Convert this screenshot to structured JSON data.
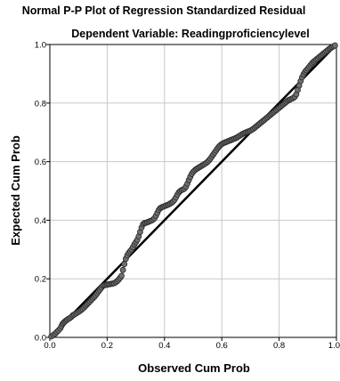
{
  "chart_data": {
    "type": "scatter",
    "title": "Normal P-P Plot of Regression Standardized Residual",
    "subtitle": "Dependent Variable: Readingproficiencylevel",
    "xlabel": "Observed Cum Prob",
    "ylabel": "Expected Cum Prob",
    "xlim": [
      0,
      1
    ],
    "ylim": [
      0,
      1
    ],
    "x_ticks": [
      0.0,
      0.2,
      0.4,
      0.6,
      0.8,
      1.0
    ],
    "y_ticks": [
      0.0,
      0.2,
      0.4,
      0.6,
      0.8,
      1.0
    ],
    "x_tick_labels": [
      "0.0",
      "0.2",
      "0.4",
      "0.6",
      "0.8",
      "1.0"
    ],
    "y_tick_labels": [
      "0.0",
      "0.2",
      "0.4",
      "0.6",
      "0.8",
      "1.0"
    ],
    "grid": true,
    "reference_line": {
      "from": [
        0,
        0
      ],
      "to": [
        1,
        1
      ]
    },
    "point_color": "#707070",
    "points": [
      [
        0.005,
        0.003
      ],
      [
        0.012,
        0.008
      ],
      [
        0.018,
        0.012
      ],
      [
        0.024,
        0.018
      ],
      [
        0.03,
        0.024
      ],
      [
        0.036,
        0.03
      ],
      [
        0.04,
        0.038
      ],
      [
        0.044,
        0.045
      ],
      [
        0.048,
        0.05
      ],
      [
        0.052,
        0.054
      ],
      [
        0.056,
        0.057
      ],
      [
        0.06,
        0.06
      ],
      [
        0.065,
        0.063
      ],
      [
        0.07,
        0.066
      ],
      [
        0.075,
        0.07
      ],
      [
        0.08,
        0.075
      ],
      [
        0.085,
        0.078
      ],
      [
        0.09,
        0.081
      ],
      [
        0.095,
        0.084
      ],
      [
        0.1,
        0.087
      ],
      [
        0.105,
        0.09
      ],
      [
        0.11,
        0.094
      ],
      [
        0.115,
        0.098
      ],
      [
        0.12,
        0.103
      ],
      [
        0.125,
        0.108
      ],
      [
        0.13,
        0.113
      ],
      [
        0.135,
        0.118
      ],
      [
        0.14,
        0.123
      ],
      [
        0.145,
        0.128
      ],
      [
        0.15,
        0.133
      ],
      [
        0.155,
        0.138
      ],
      [
        0.16,
        0.144
      ],
      [
        0.165,
        0.15
      ],
      [
        0.17,
        0.157
      ],
      [
        0.175,
        0.163
      ],
      [
        0.18,
        0.17
      ],
      [
        0.185,
        0.176
      ],
      [
        0.19,
        0.178
      ],
      [
        0.195,
        0.179
      ],
      [
        0.2,
        0.18
      ],
      [
        0.205,
        0.181
      ],
      [
        0.21,
        0.182
      ],
      [
        0.215,
        0.183
      ],
      [
        0.22,
        0.184
      ],
      [
        0.225,
        0.185
      ],
      [
        0.23,
        0.188
      ],
      [
        0.235,
        0.192
      ],
      [
        0.24,
        0.197
      ],
      [
        0.245,
        0.203
      ],
      [
        0.25,
        0.21
      ],
      [
        0.255,
        0.23
      ],
      [
        0.26,
        0.25
      ],
      [
        0.265,
        0.268
      ],
      [
        0.27,
        0.28
      ],
      [
        0.275,
        0.288
      ],
      [
        0.28,
        0.294
      ],
      [
        0.285,
        0.3
      ],
      [
        0.29,
        0.308
      ],
      [
        0.295,
        0.317
      ],
      [
        0.3,
        0.325
      ],
      [
        0.305,
        0.333
      ],
      [
        0.31,
        0.345
      ],
      [
        0.315,
        0.36
      ],
      [
        0.32,
        0.375
      ],
      [
        0.325,
        0.386
      ],
      [
        0.33,
        0.39
      ],
      [
        0.335,
        0.391
      ],
      [
        0.34,
        0.393
      ],
      [
        0.345,
        0.395
      ],
      [
        0.35,
        0.397
      ],
      [
        0.355,
        0.399
      ],
      [
        0.36,
        0.402
      ],
      [
        0.365,
        0.407
      ],
      [
        0.37,
        0.415
      ],
      [
        0.375,
        0.425
      ],
      [
        0.38,
        0.435
      ],
      [
        0.385,
        0.441
      ],
      [
        0.39,
        0.444
      ],
      [
        0.395,
        0.446
      ],
      [
        0.4,
        0.448
      ],
      [
        0.405,
        0.45
      ],
      [
        0.41,
        0.452
      ],
      [
        0.415,
        0.454
      ],
      [
        0.42,
        0.457
      ],
      [
        0.425,
        0.46
      ],
      [
        0.43,
        0.464
      ],
      [
        0.435,
        0.47
      ],
      [
        0.44,
        0.478
      ],
      [
        0.445,
        0.487
      ],
      [
        0.45,
        0.495
      ],
      [
        0.455,
        0.5
      ],
      [
        0.46,
        0.503
      ],
      [
        0.465,
        0.505
      ],
      [
        0.47,
        0.508
      ],
      [
        0.475,
        0.515
      ],
      [
        0.48,
        0.525
      ],
      [
        0.485,
        0.537
      ],
      [
        0.49,
        0.548
      ],
      [
        0.495,
        0.558
      ],
      [
        0.5,
        0.565
      ],
      [
        0.505,
        0.57
      ],
      [
        0.51,
        0.574
      ],
      [
        0.515,
        0.577
      ],
      [
        0.52,
        0.58
      ],
      [
        0.525,
        0.583
      ],
      [
        0.53,
        0.586
      ],
      [
        0.535,
        0.589
      ],
      [
        0.54,
        0.592
      ],
      [
        0.545,
        0.595
      ],
      [
        0.55,
        0.599
      ],
      [
        0.555,
        0.604
      ],
      [
        0.56,
        0.61
      ],
      [
        0.565,
        0.617
      ],
      [
        0.57,
        0.624
      ],
      [
        0.575,
        0.631
      ],
      [
        0.58,
        0.638
      ],
      [
        0.585,
        0.645
      ],
      [
        0.59,
        0.651
      ],
      [
        0.595,
        0.656
      ],
      [
        0.6,
        0.66
      ],
      [
        0.605,
        0.663
      ],
      [
        0.61,
        0.665
      ],
      [
        0.615,
        0.667
      ],
      [
        0.62,
        0.669
      ],
      [
        0.625,
        0.671
      ],
      [
        0.63,
        0.673
      ],
      [
        0.635,
        0.675
      ],
      [
        0.64,
        0.677
      ],
      [
        0.645,
        0.679
      ],
      [
        0.65,
        0.681
      ],
      [
        0.655,
        0.684
      ],
      [
        0.66,
        0.687
      ],
      [
        0.665,
        0.69
      ],
      [
        0.67,
        0.693
      ],
      [
        0.675,
        0.696
      ],
      [
        0.68,
        0.698
      ],
      [
        0.685,
        0.7
      ],
      [
        0.69,
        0.702
      ],
      [
        0.695,
        0.704
      ],
      [
        0.7,
        0.706
      ],
      [
        0.705,
        0.709
      ],
      [
        0.71,
        0.712
      ],
      [
        0.715,
        0.716
      ],
      [
        0.72,
        0.72
      ],
      [
        0.725,
        0.724
      ],
      [
        0.73,
        0.728
      ],
      [
        0.735,
        0.732
      ],
      [
        0.74,
        0.736
      ],
      [
        0.745,
        0.74
      ],
      [
        0.75,
        0.744
      ],
      [
        0.755,
        0.748
      ],
      [
        0.76,
        0.752
      ],
      [
        0.765,
        0.756
      ],
      [
        0.77,
        0.76
      ],
      [
        0.775,
        0.764
      ],
      [
        0.78,
        0.768
      ],
      [
        0.785,
        0.772
      ],
      [
        0.79,
        0.776
      ],
      [
        0.795,
        0.78
      ],
      [
        0.8,
        0.784
      ],
      [
        0.805,
        0.788
      ],
      [
        0.81,
        0.792
      ],
      [
        0.815,
        0.796
      ],
      [
        0.82,
        0.8
      ],
      [
        0.825,
        0.804
      ],
      [
        0.83,
        0.808
      ],
      [
        0.835,
        0.811
      ],
      [
        0.84,
        0.813
      ],
      [
        0.845,
        0.815
      ],
      [
        0.85,
        0.818
      ],
      [
        0.855,
        0.822
      ],
      [
        0.86,
        0.83
      ],
      [
        0.865,
        0.845
      ],
      [
        0.87,
        0.86
      ],
      [
        0.875,
        0.875
      ],
      [
        0.88,
        0.888
      ],
      [
        0.885,
        0.898
      ],
      [
        0.89,
        0.906
      ],
      [
        0.895,
        0.912
      ],
      [
        0.9,
        0.918
      ],
      [
        0.905,
        0.924
      ],
      [
        0.91,
        0.93
      ],
      [
        0.915,
        0.936
      ],
      [
        0.92,
        0.941
      ],
      [
        0.925,
        0.945
      ],
      [
        0.93,
        0.949
      ],
      [
        0.935,
        0.953
      ],
      [
        0.94,
        0.957
      ],
      [
        0.945,
        0.961
      ],
      [
        0.95,
        0.965
      ],
      [
        0.955,
        0.969
      ],
      [
        0.96,
        0.973
      ],
      [
        0.965,
        0.977
      ],
      [
        0.97,
        0.981
      ],
      [
        0.975,
        0.985
      ],
      [
        0.98,
        0.988
      ],
      [
        0.985,
        0.991
      ],
      [
        0.99,
        0.994
      ],
      [
        0.995,
        0.997
      ]
    ]
  }
}
